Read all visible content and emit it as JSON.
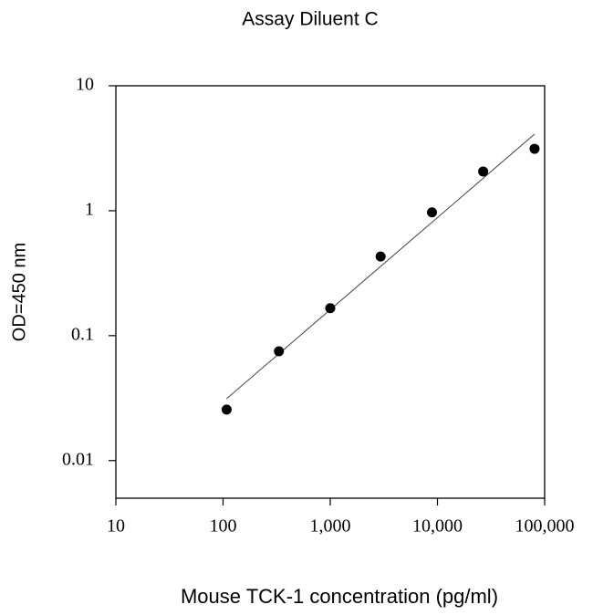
{
  "chart_data": {
    "type": "scatter",
    "title": "Assay Diluent C",
    "xlabel": "Mouse TCK-1 concentration (pg/ml)",
    "ylabel": "OD=450 nm",
    "x": [
      108,
      332,
      1000,
      2950,
      8890,
      26700,
      80500
    ],
    "values": [
      0.0256,
      0.075,
      0.166,
      0.43,
      0.97,
      2.06,
      3.13
    ],
    "color": "#000000",
    "fit_line": {
      "x": [
        108,
        80500
      ],
      "values": [
        0.0313,
        4.1
      ],
      "color": "#444444"
    },
    "xscale": "log",
    "yscale": "log",
    "xlim": [
      10,
      100000
    ],
    "ylim": [
      0.005,
      10
    ],
    "xticks": [
      10,
      100,
      {
        "value": 1000,
        "label": "1,000"
      },
      {
        "value": 10000,
        "label": "10,000"
      },
      {
        "value": 100000,
        "label": "100,000"
      }
    ],
    "yticks": [
      10,
      1,
      0.1,
      0.01
    ]
  }
}
